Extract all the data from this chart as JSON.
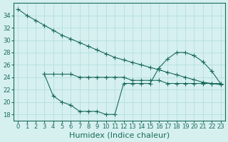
{
  "color": "#1a6b5a",
  "bg_color": "#d6f0ef",
  "grid_color": "#aaddda",
  "xlabel": "Humidex (Indice chaleur)",
  "xlim": [
    -0.5,
    23.5
  ],
  "ylim": [
    17,
    36
  ],
  "yticks": [
    18,
    20,
    22,
    24,
    26,
    28,
    30,
    32,
    34
  ],
  "xticks": [
    0,
    1,
    2,
    3,
    4,
    5,
    6,
    7,
    8,
    9,
    10,
    11,
    12,
    13,
    14,
    15,
    16,
    17,
    18,
    19,
    20,
    21,
    22,
    23
  ],
  "xlabel_fontsize": 8,
  "tick_fontsize": 6,
  "upper_x": [
    0,
    1,
    2,
    3,
    4,
    5,
    6,
    7,
    8,
    9,
    10,
    11,
    12,
    13,
    14,
    15,
    16,
    17,
    18,
    19,
    20,
    21,
    22,
    23
  ],
  "upper_y": [
    35,
    34,
    33.2,
    32.4,
    31.6,
    30.8,
    30.2,
    29.6,
    29.0,
    28.4,
    27.8,
    27.2,
    26.8,
    26.4,
    26.0,
    25.6,
    25.2,
    24.8,
    24.4,
    24.0,
    23.6,
    23.2,
    23.0,
    22.8
  ],
  "flat_x": [
    3,
    4,
    5,
    6,
    7,
    8,
    9,
    10,
    11,
    12,
    13,
    14,
    15,
    16,
    17,
    18,
    19,
    20,
    21,
    22,
    23
  ],
  "flat_y": [
    24.5,
    24.5,
    24.5,
    24.5,
    24.0,
    24.0,
    24.0,
    24.0,
    24.0,
    24.0,
    23.5,
    23.5,
    23.5,
    23.5,
    23.0,
    23.0,
    23.0,
    23.0,
    23.0,
    23.0,
    23.0
  ],
  "lower_x": [
    3,
    4,
    5,
    6,
    7,
    8,
    9,
    10,
    11,
    12,
    13,
    14,
    15,
    16,
    17,
    18,
    19,
    20,
    21,
    22,
    23
  ],
  "lower_y": [
    24.5,
    21,
    20,
    19.5,
    18.5,
    18.5,
    18.5,
    18,
    18,
    23,
    23,
    23,
    23,
    25.5,
    27,
    28,
    28,
    27.5,
    26.5,
    25,
    23
  ]
}
